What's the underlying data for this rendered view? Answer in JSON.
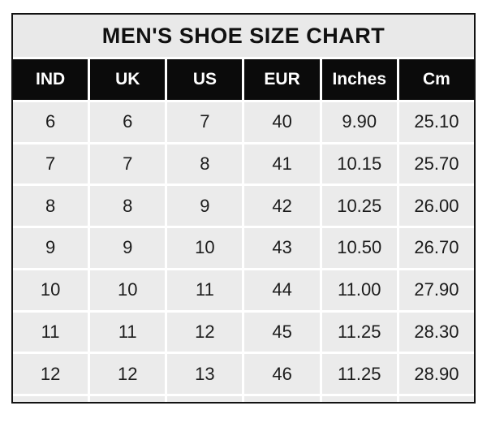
{
  "title": "MEN'S SHOE SIZE CHART",
  "columns": [
    "IND",
    "UK",
    "US",
    "EUR",
    "Inches",
    "Cm"
  ],
  "rows": [
    [
      "6",
      "6",
      "7",
      "40",
      "9.90",
      "25.10"
    ],
    [
      "7",
      "7",
      "8",
      "41",
      "10.15",
      "25.70"
    ],
    [
      "8",
      "8",
      "9",
      "42",
      "10.25",
      "26.00"
    ],
    [
      "9",
      "9",
      "10",
      "43",
      "10.50",
      "26.70"
    ],
    [
      "10",
      "10",
      "11",
      "44",
      "11.00",
      "27.90"
    ],
    [
      "11",
      "11",
      "12",
      "45",
      "11.25",
      "28.30"
    ],
    [
      "12",
      "12",
      "13",
      "46",
      "11.25",
      "28.90"
    ]
  ],
  "colors": {
    "page_background": "#ffffff",
    "outer_border": "#121212",
    "title_background": "#e9e9e9",
    "header_background": "#0b0b0b",
    "header_text": "#ffffff",
    "cell_background": "#ebebeb",
    "cell_text": "#1c1c1c",
    "gridline": "#ffffff"
  },
  "chart_data": {
    "type": "table",
    "title": "MEN'S SHOE SIZE CHART",
    "columns": [
      "IND",
      "UK",
      "US",
      "EUR",
      "Inches",
      "Cm"
    ],
    "rows": [
      [
        6,
        6,
        7,
        40,
        9.9,
        25.1
      ],
      [
        7,
        7,
        8,
        41,
        10.15,
        25.7
      ],
      [
        8,
        8,
        9,
        42,
        10.25,
        26.0
      ],
      [
        9,
        9,
        10,
        43,
        10.5,
        26.7
      ],
      [
        10,
        10,
        11,
        44,
        11.0,
        27.9
      ],
      [
        11,
        11,
        12,
        45,
        11.25,
        28.3
      ],
      [
        12,
        12,
        13,
        46,
        11.25,
        28.9
      ]
    ]
  }
}
